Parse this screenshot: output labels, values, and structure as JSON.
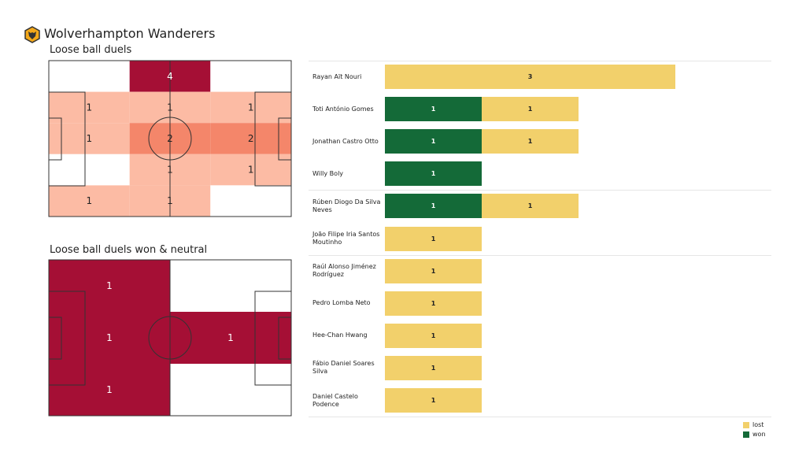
{
  "header": {
    "team": "Wolverhampton Wanderers",
    "logo_icon": "wolves-crest-icon"
  },
  "colors": {
    "lost": "#f2d06b",
    "won": "#146a38",
    "heat_low": "#fcbba4",
    "heat_mid": "#f4866a",
    "heat_high": "#a50f35",
    "line": "#333333"
  },
  "chart_data": [
    {
      "type": "heatmap",
      "title": "Loose ball duels",
      "rows": 5,
      "cols": 3,
      "values": [
        [
          0,
          4,
          0
        ],
        [
          1,
          1,
          1
        ],
        [
          1,
          2,
          2
        ],
        [
          0,
          1,
          1
        ],
        [
          1,
          1,
          0
        ]
      ]
    },
    {
      "type": "heatmap",
      "title": "Loose ball duels won & neutral",
      "rows": 3,
      "cols": 2,
      "values": [
        [
          1,
          0
        ],
        [
          1,
          1
        ],
        [
          1,
          0
        ]
      ]
    },
    {
      "type": "bar",
      "orientation": "horizontal",
      "stacked": true,
      "categories": [
        "Rayan Aït Nouri",
        "Toti António Gomes",
        "Jonathan Castro Otto",
        "Willy Boly",
        "Rúben Diogo Da Silva Neves",
        "João Filipe Iria Santos Moutinho",
        "Raúl Alonso Jiménez Rodríguez",
        "Pedro Lomba Neto",
        "Hee-Chan Hwang",
        "Fábio Daniel Soares Silva",
        "Daniel Castelo Podence"
      ],
      "series": [
        {
          "name": "won",
          "values": [
            0,
            1,
            1,
            1,
            1,
            0,
            0,
            0,
            0,
            0,
            0
          ]
        },
        {
          "name": "lost",
          "values": [
            3,
            1,
            1,
            0,
            1,
            1,
            1,
            1,
            1,
            1,
            1
          ]
        }
      ],
      "legend": {
        "position": "bottom-right",
        "entries": [
          "lost",
          "won"
        ]
      }
    }
  ]
}
